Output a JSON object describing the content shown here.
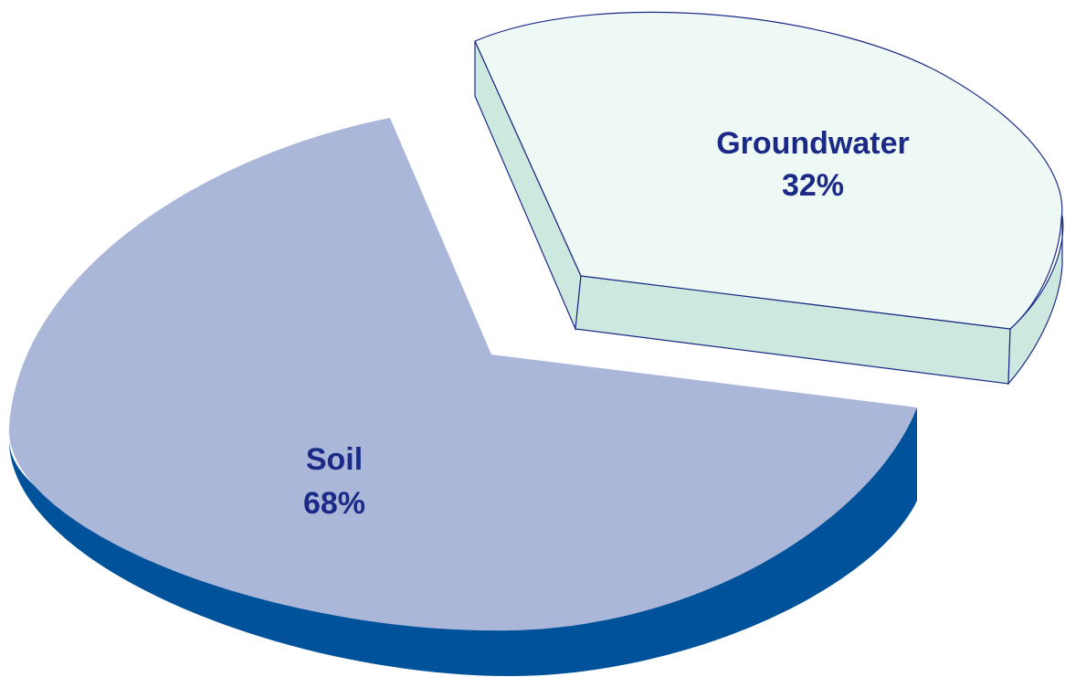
{
  "chart_data": {
    "type": "pie",
    "style": "3d-exploded",
    "slices": [
      {
        "name": "Soil",
        "value": 68,
        "value_label": "68%",
        "top_color": "#abb7d9",
        "side_color": "#00529b",
        "label_color": "#1b2a86"
      },
      {
        "name": "Groundwater",
        "value": 32,
        "value_label": "32%",
        "top_color": "#eef8f5",
        "side_color": "#cde8de",
        "label_color": "#1b2a86",
        "exploded": true
      }
    ],
    "outline_color": "#1b2a86"
  }
}
